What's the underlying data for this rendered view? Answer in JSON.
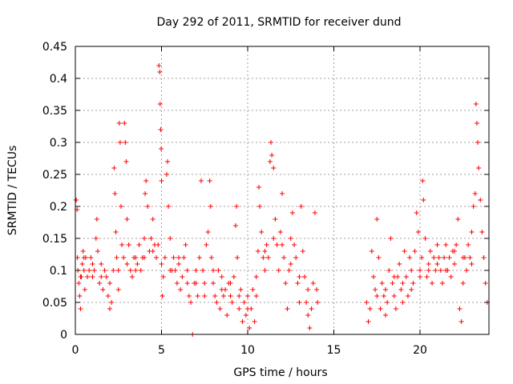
{
  "chart_data": {
    "type": "scatter",
    "title": "Day 292 of 2011, SRMTID for receiver dund",
    "xlabel": "GPS time / hours",
    "ylabel": "SRMTID / TECUs",
    "xlim": [
      0,
      24
    ],
    "ylim": [
      0,
      0.45
    ],
    "x_ticks": [
      0,
      5,
      10,
      15,
      20
    ],
    "x_tick_labels": [
      "0",
      "5",
      "10",
      "15",
      "20"
    ],
    "y_ticks": [
      0,
      0.05,
      0.1,
      0.15,
      0.2,
      0.25,
      0.3,
      0.35,
      0.4,
      0.45
    ],
    "y_tick_labels": [
      "0",
      "0.05",
      "0.1",
      "0.15",
      "0.2",
      "0.25",
      "0.3",
      "0.35",
      "0.4",
      "0.45"
    ],
    "grid": true,
    "marker": "+",
    "marker_color": "#ff0000",
    "series": [
      {
        "name": "SRMTID",
        "points": [
          [
            0.05,
            0.21
          ],
          [
            0.1,
            0.195
          ],
          [
            0.12,
            0.12
          ],
          [
            0.15,
            0.1
          ],
          [
            0.2,
            0.08
          ],
          [
            0.25,
            0.06
          ],
          [
            0.3,
            0.04
          ],
          [
            0.35,
            0.09
          ],
          [
            0.4,
            0.11
          ],
          [
            0.45,
            0.13
          ],
          [
            0.5,
            0.1
          ],
          [
            0.55,
            0.07
          ],
          [
            0.6,
            0.12
          ],
          [
            0.7,
            0.09
          ],
          [
            0.8,
            0.1
          ],
          [
            0.9,
            0.12
          ],
          [
            1.0,
            0.11
          ],
          [
            1.1,
            0.1
          ],
          [
            1.2,
            0.15
          ],
          [
            1.25,
            0.18
          ],
          [
            1.3,
            0.13
          ],
          [
            1.4,
            0.08
          ],
          [
            1.5,
            0.09
          ],
          [
            1.6,
            0.07
          ],
          [
            1.7,
            0.1
          ],
          [
            1.8,
            0.09
          ],
          [
            1.9,
            0.06
          ],
          [
            2.0,
            0.04
          ],
          [
            2.1,
            0.05
          ],
          [
            2.2,
            0.1
          ],
          [
            2.25,
            0.26
          ],
          [
            2.3,
            0.22
          ],
          [
            2.35,
            0.16
          ],
          [
            2.4,
            0.12
          ],
          [
            2.5,
            0.1
          ],
          [
            2.55,
            0.33
          ],
          [
            2.6,
            0.3
          ],
          [
            2.65,
            0.2
          ],
          [
            2.7,
            0.14
          ],
          [
            2.8,
            0.12
          ],
          [
            2.85,
            0.33
          ],
          [
            2.9,
            0.3
          ],
          [
            2.95,
            0.27
          ],
          [
            3.0,
            0.18
          ],
          [
            3.1,
            0.14
          ],
          [
            3.2,
            0.1
          ],
          [
            3.3,
            0.09
          ],
          [
            3.4,
            0.12
          ],
          [
            3.5,
            0.1
          ],
          [
            3.6,
            0.11
          ],
          [
            3.7,
            0.14
          ],
          [
            3.8,
            0.1
          ],
          [
            3.9,
            0.12
          ],
          [
            4.0,
            0.15
          ],
          [
            4.05,
            0.22
          ],
          [
            4.1,
            0.24
          ],
          [
            4.2,
            0.2
          ],
          [
            4.3,
            0.13
          ],
          [
            4.4,
            0.15
          ],
          [
            4.5,
            0.18
          ],
          [
            4.6,
            0.14
          ],
          [
            4.7,
            0.12
          ],
          [
            4.8,
            0.14
          ],
          [
            4.85,
            0.42
          ],
          [
            4.9,
            0.41
          ],
          [
            4.92,
            0.36
          ],
          [
            4.95,
            0.32
          ],
          [
            4.98,
            0.29
          ],
          [
            5.0,
            0.24
          ],
          [
            5.05,
            0.06
          ],
          [
            5.1,
            0.09
          ],
          [
            5.2,
            0.12
          ],
          [
            5.3,
            0.25
          ],
          [
            5.35,
            0.27
          ],
          [
            5.4,
            0.2
          ],
          [
            5.5,
            0.15
          ],
          [
            5.6,
            0.1
          ],
          [
            5.7,
            0.12
          ],
          [
            5.8,
            0.1
          ],
          [
            5.9,
            0.08
          ],
          [
            6.0,
            0.11
          ],
          [
            6.1,
            0.07
          ],
          [
            6.2,
            0.09
          ],
          [
            6.3,
            0.12
          ],
          [
            6.4,
            0.14
          ],
          [
            6.5,
            0.08
          ],
          [
            6.6,
            0.06
          ],
          [
            6.7,
            0.05
          ],
          [
            6.8,
            0.0
          ],
          [
            6.9,
            0.08
          ],
          [
            7.0,
            0.1
          ],
          [
            7.1,
            0.06
          ],
          [
            7.2,
            0.12
          ],
          [
            7.3,
            0.24
          ],
          [
            7.4,
            0.1
          ],
          [
            7.5,
            0.08
          ],
          [
            7.6,
            0.14
          ],
          [
            7.7,
            0.16
          ],
          [
            7.8,
            0.24
          ],
          [
            7.85,
            0.2
          ],
          [
            7.9,
            0.12
          ],
          [
            8.0,
            0.08
          ],
          [
            8.1,
            0.06
          ],
          [
            8.2,
            0.05
          ],
          [
            8.3,
            0.1
          ],
          [
            8.4,
            0.04
          ],
          [
            8.5,
            0.09
          ],
          [
            8.6,
            0.06
          ],
          [
            8.7,
            0.07
          ],
          [
            8.8,
            0.03
          ],
          [
            8.9,
            0.08
          ],
          [
            9.0,
            0.06
          ],
          [
            9.1,
            0.05
          ],
          [
            9.2,
            0.09
          ],
          [
            9.3,
            0.17
          ],
          [
            9.35,
            0.2
          ],
          [
            9.4,
            0.12
          ],
          [
            9.5,
            0.04
          ],
          [
            9.6,
            0.07
          ],
          [
            9.7,
            0.02
          ],
          [
            9.8,
            0.05
          ],
          [
            9.9,
            0.03
          ],
          [
            10.0,
            0.06
          ],
          [
            10.1,
            0.01
          ],
          [
            10.2,
            0.04
          ],
          [
            10.3,
            0.07
          ],
          [
            10.4,
            0.02
          ],
          [
            10.5,
            0.09
          ],
          [
            10.6,
            0.13
          ],
          [
            10.65,
            0.23
          ],
          [
            10.7,
            0.2
          ],
          [
            10.8,
            0.16
          ],
          [
            10.9,
            0.12
          ],
          [
            11.0,
            0.1
          ],
          [
            11.1,
            0.14
          ],
          [
            11.2,
            0.12
          ],
          [
            11.3,
            0.27
          ],
          [
            11.35,
            0.3
          ],
          [
            11.4,
            0.28
          ],
          [
            11.5,
            0.26
          ],
          [
            11.6,
            0.18
          ],
          [
            11.7,
            0.14
          ],
          [
            11.8,
            0.1
          ],
          [
            11.9,
            0.16
          ],
          [
            12.0,
            0.22
          ],
          [
            12.1,
            0.12
          ],
          [
            12.2,
            0.08
          ],
          [
            12.3,
            0.04
          ],
          [
            12.4,
            0.1
          ],
          [
            12.5,
            0.15
          ],
          [
            12.6,
            0.19
          ],
          [
            12.7,
            0.14
          ],
          [
            12.8,
            0.12
          ],
          [
            12.9,
            0.08
          ],
          [
            13.0,
            0.05
          ],
          [
            13.1,
            0.2
          ],
          [
            13.2,
            0.13
          ],
          [
            13.3,
            0.09
          ],
          [
            13.4,
            0.05
          ],
          [
            13.5,
            0.03
          ],
          [
            13.6,
            0.01
          ],
          [
            13.7,
            0.04
          ],
          [
            13.8,
            0.08
          ],
          [
            13.9,
            0.19
          ],
          [
            14.0,
            0.07
          ],
          [
            14.05,
            0.05
          ],
          [
            16.9,
            0.05
          ],
          [
            17.0,
            0.02
          ],
          [
            17.1,
            0.04
          ],
          [
            17.2,
            0.13
          ],
          [
            17.3,
            0.09
          ],
          [
            17.4,
            0.07
          ],
          [
            17.5,
            0.18
          ],
          [
            17.6,
            0.12
          ],
          [
            17.7,
            0.04
          ],
          [
            17.8,
            0.08
          ],
          [
            17.9,
            0.06
          ],
          [
            18.0,
            0.03
          ],
          [
            18.1,
            0.05
          ],
          [
            18.2,
            0.1
          ],
          [
            18.3,
            0.15
          ],
          [
            18.4,
            0.08
          ],
          [
            18.5,
            0.06
          ],
          [
            18.6,
            0.04
          ],
          [
            18.7,
            0.09
          ],
          [
            18.8,
            0.11
          ],
          [
            18.9,
            0.07
          ],
          [
            19.0,
            0.05
          ],
          [
            19.1,
            0.13
          ],
          [
            19.2,
            0.09
          ],
          [
            19.3,
            0.06
          ],
          [
            19.4,
            0.12
          ],
          [
            19.5,
            0.1
          ],
          [
            19.6,
            0.08
          ],
          [
            19.7,
            0.13
          ],
          [
            19.8,
            0.19
          ],
          [
            19.9,
            0.16
          ],
          [
            20.0,
            0.1
          ],
          [
            20.1,
            0.12
          ],
          [
            20.15,
            0.24
          ],
          [
            20.2,
            0.21
          ],
          [
            20.3,
            0.15
          ],
          [
            20.4,
            0.09
          ],
          [
            20.5,
            0.11
          ],
          [
            20.6,
            0.13
          ],
          [
            20.7,
            0.08
          ],
          [
            20.8,
            0.12
          ],
          [
            20.9,
            0.1
          ],
          [
            21.0,
            0.14
          ],
          [
            21.1,
            0.12
          ],
          [
            21.2,
            0.1
          ],
          [
            21.3,
            0.08
          ],
          [
            21.4,
            0.12
          ],
          [
            21.5,
            0.14
          ],
          [
            21.6,
            0.1
          ],
          [
            21.7,
            0.12
          ],
          [
            21.8,
            0.09
          ],
          [
            21.9,
            0.13
          ],
          [
            22.0,
            0.11
          ],
          [
            22.1,
            0.14
          ],
          [
            22.2,
            0.18
          ],
          [
            22.3,
            0.04
          ],
          [
            22.4,
            0.02
          ],
          [
            22.5,
            0.08
          ],
          [
            22.6,
            0.12
          ],
          [
            22.7,
            0.1
          ],
          [
            22.8,
            0.14
          ],
          [
            22.9,
            0.12
          ],
          [
            23.0,
            0.16
          ],
          [
            23.1,
            0.2
          ],
          [
            23.2,
            0.22
          ],
          [
            23.25,
            0.36
          ],
          [
            23.3,
            0.33
          ],
          [
            23.35,
            0.3
          ],
          [
            23.4,
            0.26
          ],
          [
            23.5,
            0.21
          ],
          [
            23.6,
            0.16
          ],
          [
            23.7,
            0.12
          ],
          [
            23.8,
            0.08
          ],
          [
            23.9,
            0.05
          ],
          [
            0.3,
            0.09
          ],
          [
            0.5,
            0.12
          ],
          [
            1.0,
            0.09
          ],
          [
            1.5,
            0.11
          ],
          [
            2.0,
            0.08
          ],
          [
            2.5,
            0.07
          ],
          [
            3.0,
            0.11
          ],
          [
            3.5,
            0.12
          ],
          [
            4.0,
            0.12
          ],
          [
            4.5,
            0.13
          ],
          [
            5.0,
            0.11
          ],
          [
            5.5,
            0.1
          ],
          [
            6.0,
            0.12
          ],
          [
            6.5,
            0.1
          ],
          [
            7.0,
            0.08
          ],
          [
            7.5,
            0.06
          ],
          [
            8.0,
            0.1
          ],
          [
            8.5,
            0.07
          ],
          [
            9.0,
            0.08
          ],
          [
            9.5,
            0.06
          ],
          [
            10.0,
            0.04
          ],
          [
            10.5,
            0.06
          ],
          [
            11.0,
            0.13
          ],
          [
            11.5,
            0.15
          ],
          [
            12.0,
            0.14
          ],
          [
            12.5,
            0.11
          ],
          [
            13.0,
            0.09
          ],
          [
            13.5,
            0.07
          ],
          [
            17.5,
            0.06
          ],
          [
            18.0,
            0.07
          ],
          [
            18.5,
            0.09
          ],
          [
            19.0,
            0.08
          ],
          [
            19.5,
            0.07
          ],
          [
            20.0,
            0.09
          ],
          [
            20.5,
            0.1
          ],
          [
            21.0,
            0.11
          ],
          [
            21.5,
            0.1
          ],
          [
            22.0,
            0.13
          ],
          [
            22.5,
            0.12
          ],
          [
            23.0,
            0.11
          ]
        ]
      }
    ]
  }
}
